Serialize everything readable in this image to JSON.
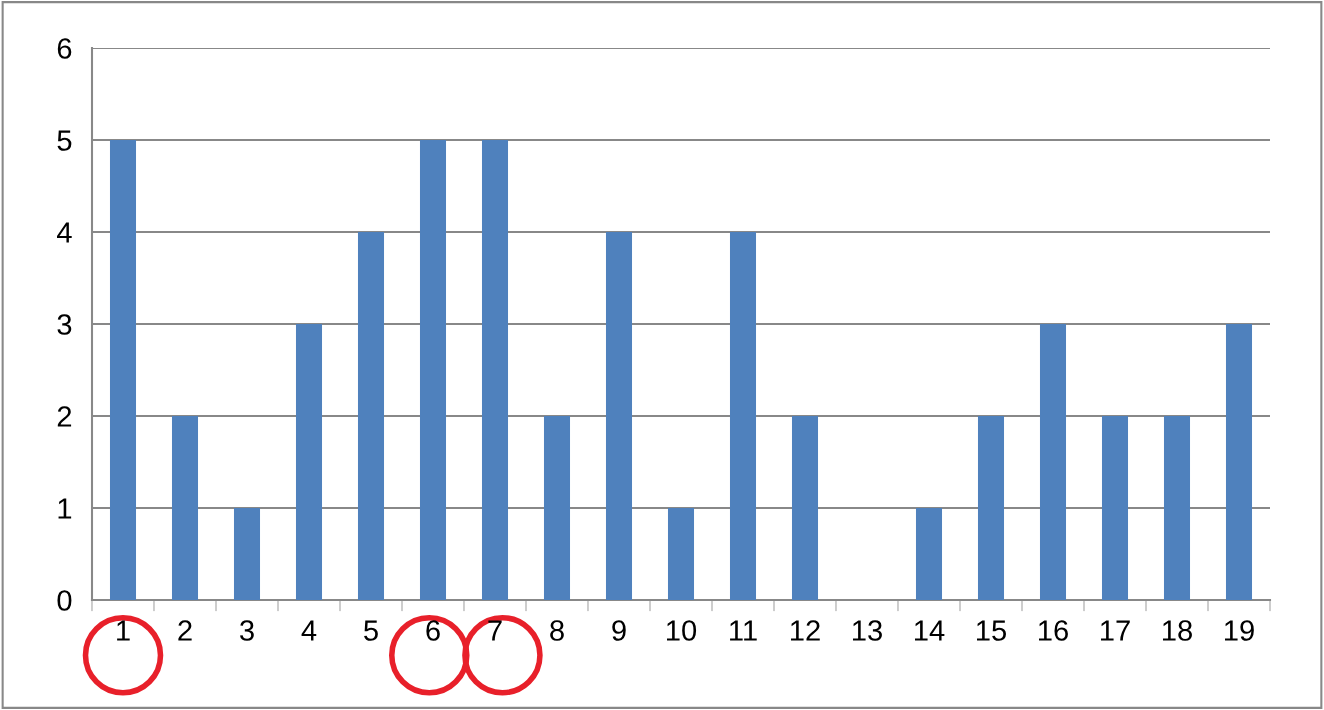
{
  "chart_data": {
    "type": "bar",
    "categories": [
      "1",
      "2",
      "3",
      "4",
      "5",
      "6",
      "7",
      "8",
      "9",
      "10",
      "11",
      "12",
      "13",
      "14",
      "15",
      "16",
      "17",
      "18",
      "19"
    ],
    "values": [
      5,
      2,
      1,
      3,
      4,
      5,
      5,
      2,
      4,
      1,
      4,
      2,
      0,
      1,
      2,
      3,
      2,
      2,
      3
    ],
    "color": "#4f81bd",
    "ylim": [
      0,
      6
    ],
    "yticks": [
      0,
      1,
      2,
      3,
      4,
      5,
      6
    ],
    "grid": "y",
    "legend": false
  }
}
